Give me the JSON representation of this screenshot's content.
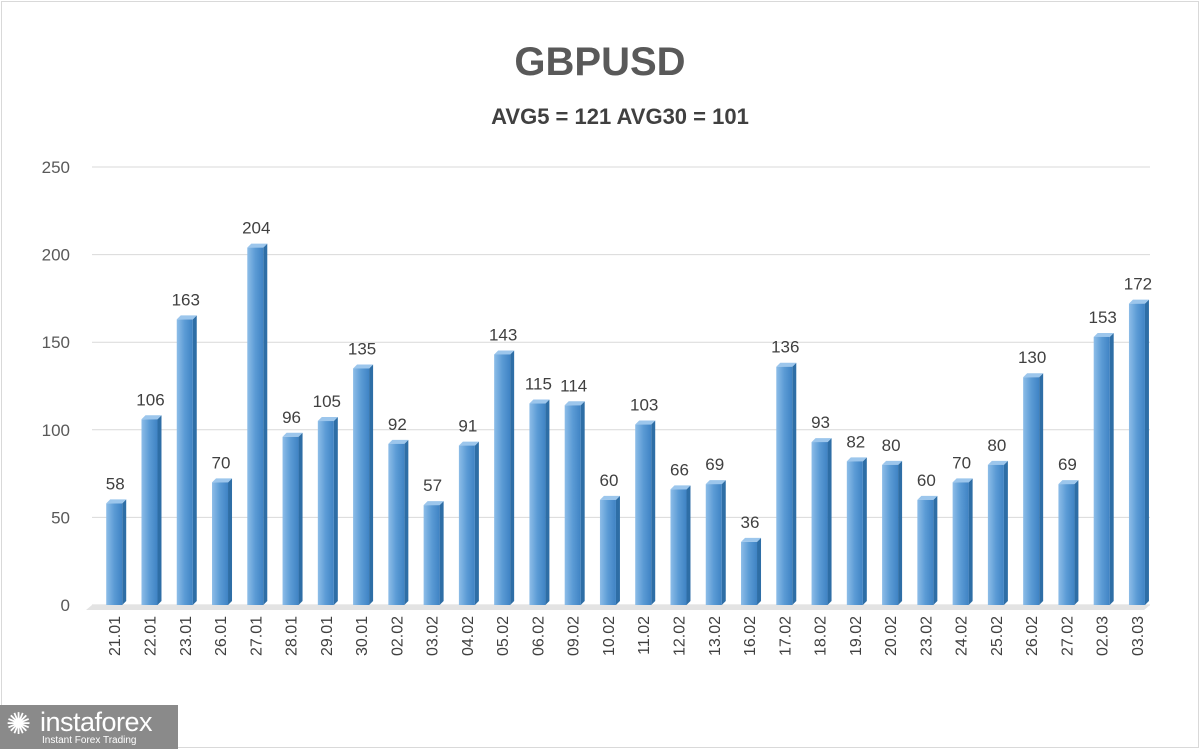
{
  "chart_data": {
    "type": "bar",
    "title": "GBPUSD",
    "subtitle": "AVG5 = 121 AVG30 = 101",
    "categories": [
      "21.01",
      "22.01",
      "23.01",
      "26.01",
      "27.01",
      "28.01",
      "29.01",
      "30.01",
      "02.02",
      "03.02",
      "04.02",
      "05.02",
      "06.02",
      "09.02",
      "10.02",
      "11.02",
      "12.02",
      "13.02",
      "16.02",
      "17.02",
      "18.02",
      "19.02",
      "20.02",
      "23.02",
      "24.02",
      "25.02",
      "26.02",
      "27.02",
      "02.03",
      "03.03"
    ],
    "values": [
      58,
      106,
      163,
      70,
      204,
      96,
      105,
      135,
      92,
      57,
      91,
      143,
      115,
      114,
      60,
      103,
      66,
      69,
      36,
      136,
      93,
      82,
      80,
      60,
      70,
      80,
      130,
      69,
      153,
      172
    ],
    "ylim": [
      0,
      250
    ],
    "yticks": [
      0,
      50,
      100,
      150,
      200,
      250
    ],
    "xlabel": "",
    "ylabel": "",
    "grid": true,
    "legend": "none",
    "colors": {
      "bar": "#5b9bd5",
      "bar_side": "#2e6ea6",
      "grid": "#d9d9d9"
    }
  },
  "logo": {
    "name": "instaforex",
    "tagline": "Instant Forex Trading"
  }
}
